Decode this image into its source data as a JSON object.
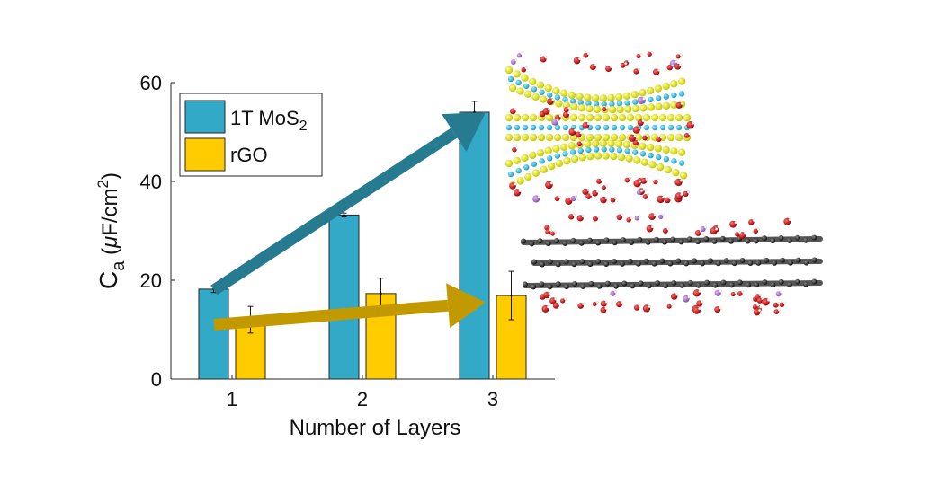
{
  "chart_data": {
    "type": "bar",
    "categories": [
      "1",
      "2",
      "3"
    ],
    "xlabel": "Number of Layers",
    "ylabel_main": "C",
    "ylabel_sub": "a",
    "ylabel_unit_open": " (",
    "ylabel_mu": "μ",
    "ylabel_unit_mid": "F/cm",
    "ylabel_sup": "2",
    "ylabel_unit_close": ")",
    "ylim": [
      0,
      60
    ],
    "yticks": [
      0,
      20,
      40,
      60
    ],
    "legend_placement": "top-left",
    "series": [
      {
        "name_main": "1T MoS",
        "name_sub": "2",
        "color": "#33a9c8",
        "values": [
          18.2,
          33.2,
          54.0
        ],
        "errors": [
          0.7,
          0.4,
          2.2
        ]
      },
      {
        "name_main": "rGO",
        "name_sub": "",
        "color": "#ffcc00",
        "values": [
          12.0,
          17.3,
          16.9
        ],
        "errors": [
          2.7,
          3.1,
          4.9
        ]
      }
    ],
    "trend_arrows": [
      {
        "color": "#267b90",
        "from": [
          1,
          18.0
        ],
        "to": [
          3,
          54.0
        ]
      },
      {
        "color": "#c29a00",
        "from": [
          1,
          11.0
        ],
        "to": [
          3,
          15.5
        ]
      }
    ],
    "illustrations": [
      "mos2-layered-structure",
      "rgo-layered-structure"
    ]
  }
}
